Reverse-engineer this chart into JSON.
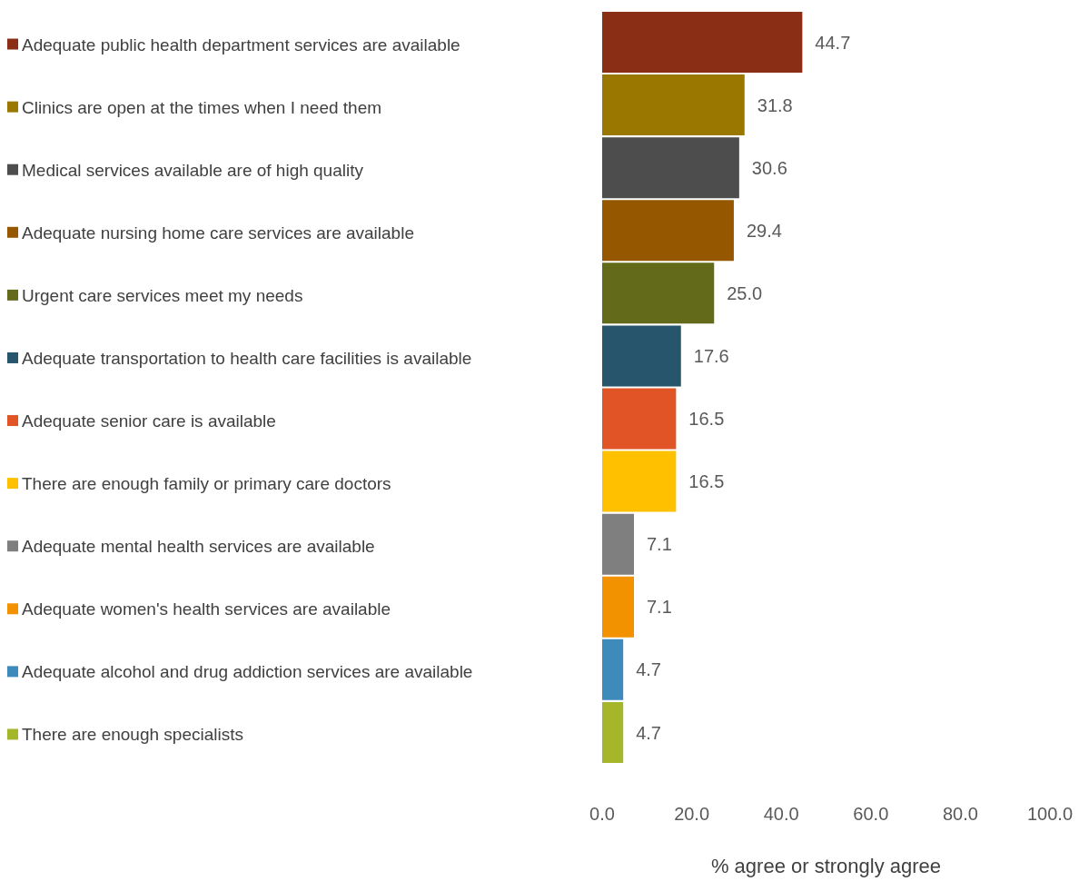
{
  "chart_data": {
    "type": "bar",
    "orientation": "horizontal",
    "xlabel": "% agree or strongly agree",
    "categories": [
      "Adequate public health department services are available",
      "Clinics are open at the times when I need them",
      "Medical services available are of high quality",
      "Adequate nursing home care services are available",
      "Urgent care services meet my needs",
      "Adequate transportation to health care facilities is available",
      "Adequate senior care is available",
      "There are enough family or primary care doctors",
      "Adequate mental health services are available",
      "Adequate women's health services are available",
      "Adequate alcohol and drug addiction services are available",
      "There are enough specialists"
    ],
    "values": [
      44.7,
      31.8,
      30.6,
      29.4,
      25.0,
      17.6,
      16.5,
      16.5,
      7.1,
      7.1,
      4.7,
      4.7
    ],
    "value_labels": [
      "44.7",
      "31.8",
      "30.6",
      "29.4",
      "25.0",
      "17.6",
      "16.5",
      "16.5",
      "7.1",
      "7.1",
      "4.7",
      "4.7"
    ],
    "colors": [
      "#8b2e16",
      "#9a7800",
      "#4d4d4d",
      "#955800",
      "#636b1a",
      "#27556c",
      "#e05426",
      "#ffc000",
      "#7f7f7f",
      "#f39200",
      "#3e8abb",
      "#a5b62a"
    ],
    "xlim": [
      0,
      100
    ],
    "xticks": [
      {
        "value": 0,
        "label": "0.0"
      },
      {
        "value": 20,
        "label": "20.0"
      },
      {
        "value": 40,
        "label": "40.0"
      },
      {
        "value": 60,
        "label": "60.0"
      },
      {
        "value": 80,
        "label": "80.0"
      },
      {
        "value": 100,
        "label": "100.0"
      }
    ]
  }
}
